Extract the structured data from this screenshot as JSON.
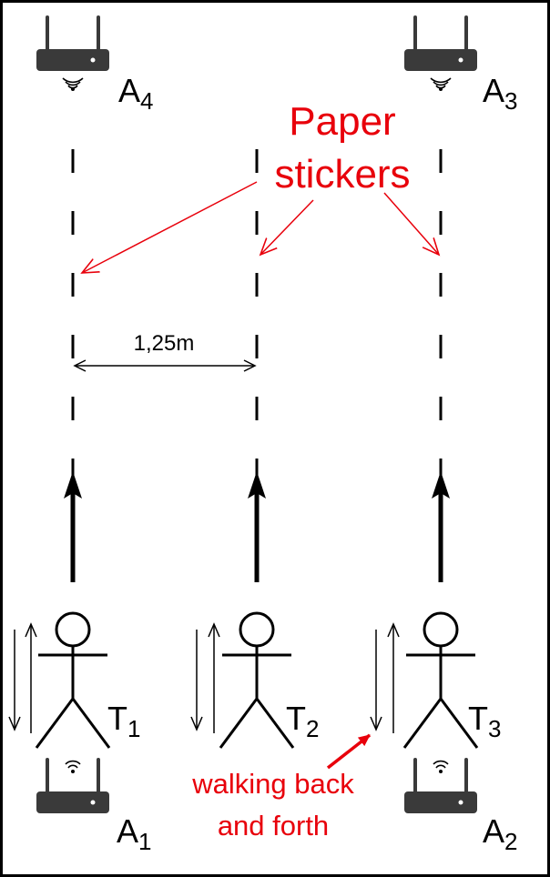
{
  "colors": {
    "ink": "#000000",
    "accent": "#e8000b",
    "router": "#3a3a3a"
  },
  "routers": [
    {
      "id": "A4",
      "main": "A",
      "sub": "4"
    },
    {
      "id": "A3",
      "main": "A",
      "sub": "3"
    },
    {
      "id": "A1",
      "main": "A",
      "sub": "1"
    },
    {
      "id": "A2",
      "main": "A",
      "sub": "2"
    }
  ],
  "persons": [
    {
      "id": "T1",
      "main": "T",
      "sub": "1"
    },
    {
      "id": "T2",
      "main": "T",
      "sub": "2"
    },
    {
      "id": "T3",
      "main": "T",
      "sub": "3"
    }
  ],
  "annotations": {
    "stickers_line1": "Paper",
    "stickers_line2": "stickers",
    "distance": "1,25m",
    "walking_line1": "walking back",
    "walking_line2": "and forth"
  },
  "icons": [
    "router-icon",
    "wifi-signal-icon",
    "stick-figure-icon",
    "arrow-up-icon"
  ]
}
